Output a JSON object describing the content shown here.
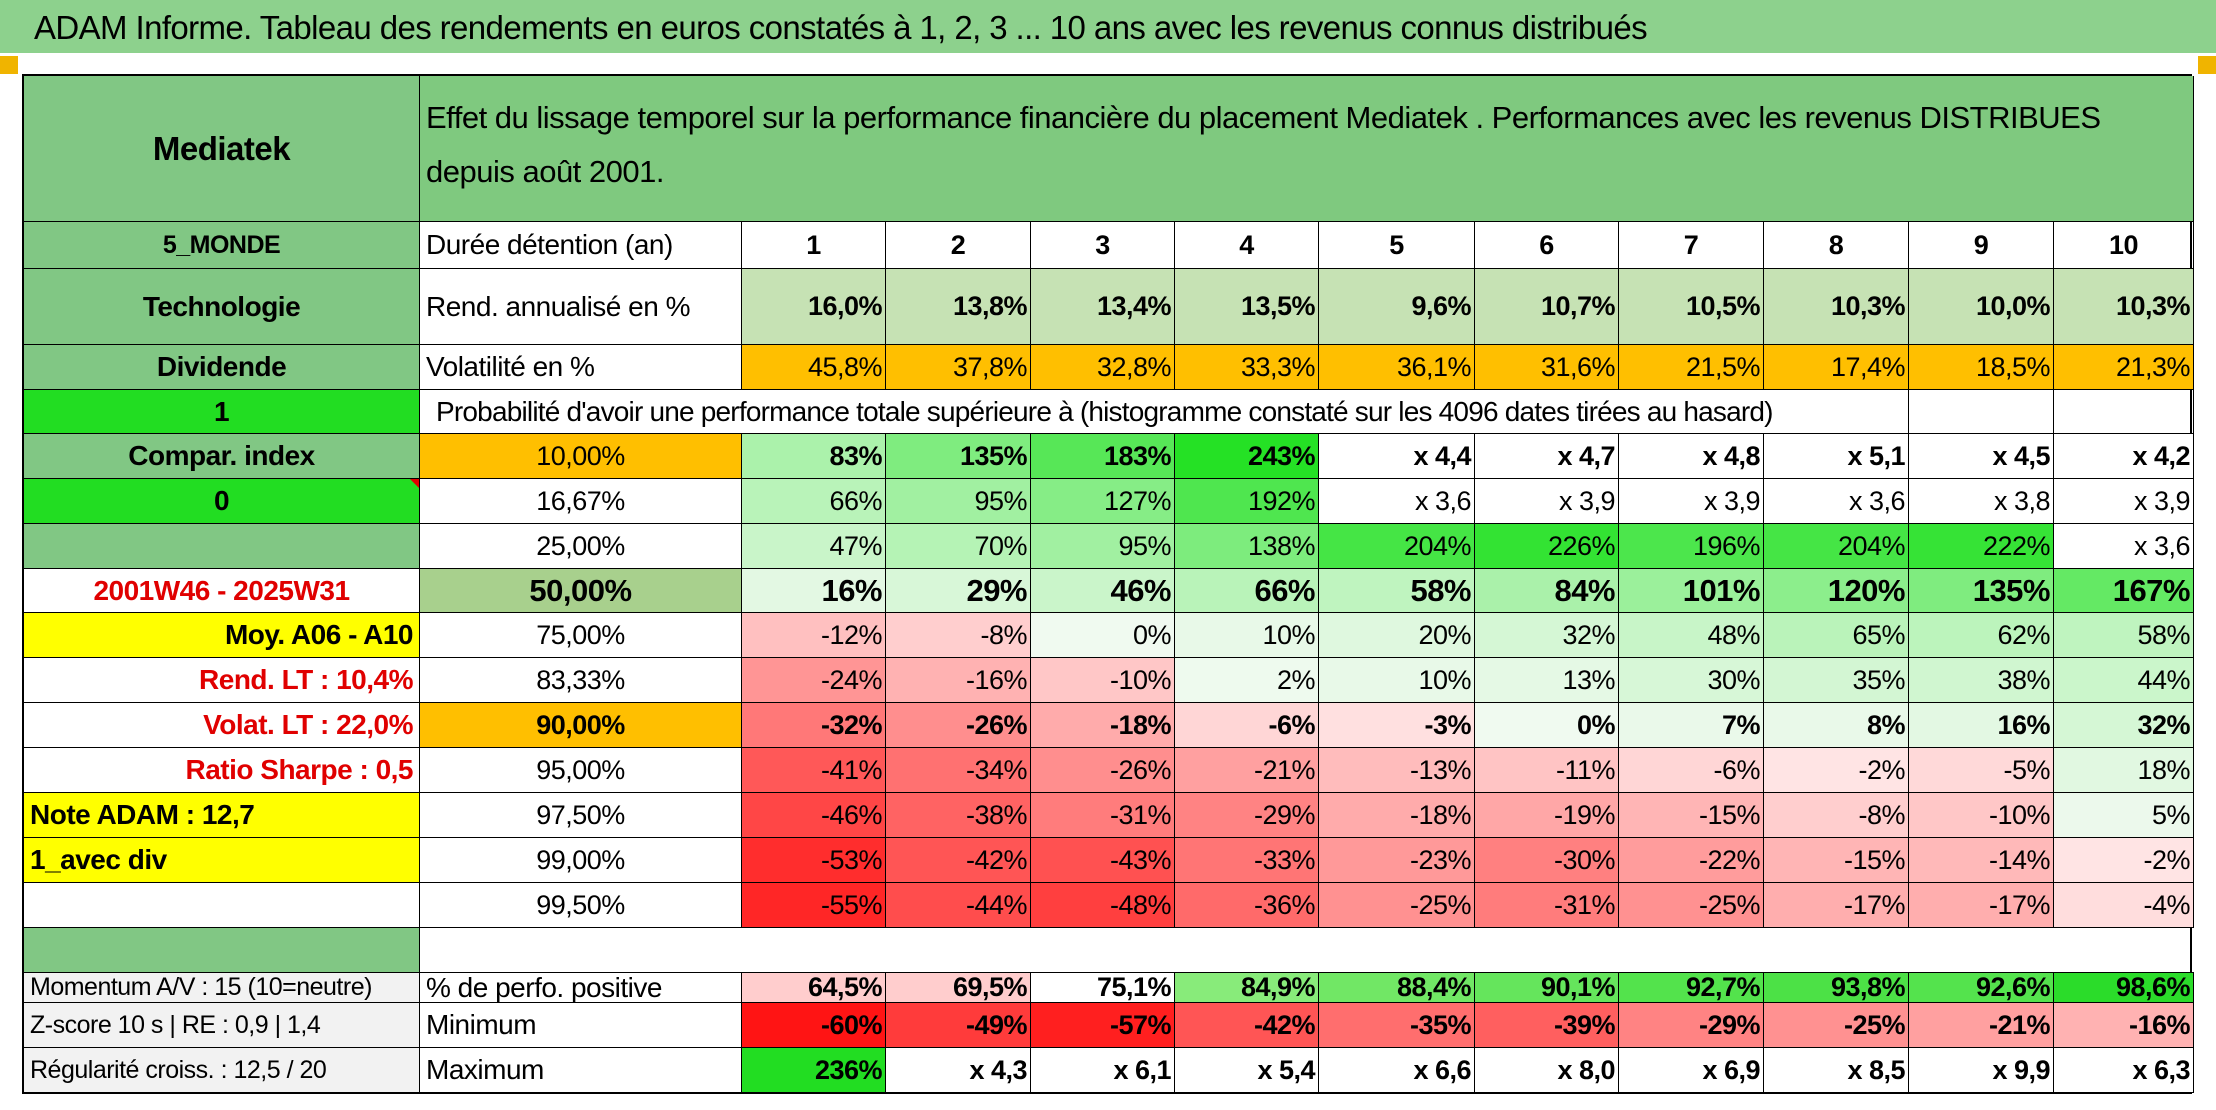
{
  "title": "ADAM Informe. Tableau des rendements en euros constatés à 1, 2, 3 ... 10 ans avec les revenus connus distribués",
  "left": {
    "name": "Mediatek",
    "zone": "5_MONDE",
    "sector": "Technologie",
    "dividend": "Dividende",
    "value_one": "1",
    "compar_index": "Compar. index",
    "value_zero": "0",
    "period": "2001W46 - 2025W31",
    "moy": "Moy. A06 - A10",
    "rend_lt": "Rend. LT :    10,4%",
    "volat_lt": "Volat. LT :    22,0%",
    "sharpe": "Ratio Sharpe :    0,5",
    "note": "Note ADAM : 12,7",
    "avec_div": "1_avec div",
    "momentum": "Momentum A/V : 15 (10=neutre)",
    "zscore": "Z-score 10 s | RE : 0,9 | 1,4",
    "regularite": "Régularité croiss. : 12,5 / 20"
  },
  "heading": "Effet du lissage temporel sur la performance financière du placement Mediatek . Performances avec les revenus DISTRIBUES depuis août 2001.",
  "duree_label": "Durée détention (an)",
  "years": [
    "1",
    "2",
    "3",
    "4",
    "5",
    "6",
    "7",
    "8",
    "9",
    "10"
  ],
  "rend_label": "Rend. annualisé en %",
  "rend": [
    "16,0%",
    "13,8%",
    "13,4%",
    "13,5%",
    "9,6%",
    "10,7%",
    "10,5%",
    "10,3%",
    "10,0%",
    "10,3%"
  ],
  "vol_label": "Volatilité en %",
  "vol": [
    "45,8%",
    "37,8%",
    "32,8%",
    "33,3%",
    "36,1%",
    "31,6%",
    "21,5%",
    "17,4%",
    "18,5%",
    "21,3%"
  ],
  "prob_heading": "Probabilité d'avoir une performance totale supérieure à (histogramme constaté sur les 4096 dates tirées au hasard)",
  "prob_rows": [
    {
      "p": "10,00%",
      "v": [
        "83%",
        "135%",
        "183%",
        "243%",
        "x 4,4",
        "x 4,7",
        "x 4,8",
        "x 5,1",
        "x 4,5",
        "x 4,2"
      ]
    },
    {
      "p": "16,67%",
      "v": [
        "66%",
        "95%",
        "127%",
        "192%",
        "x 3,6",
        "x 3,9",
        "x 3,9",
        "x 3,6",
        "x 3,8",
        "x 3,9"
      ]
    },
    {
      "p": "25,00%",
      "v": [
        "47%",
        "70%",
        "95%",
        "138%",
        "204%",
        "226%",
        "196%",
        "204%",
        "222%",
        "x 3,6"
      ]
    },
    {
      "p": "50,00%",
      "v": [
        "16%",
        "29%",
        "46%",
        "66%",
        "58%",
        "84%",
        "101%",
        "120%",
        "135%",
        "167%"
      ]
    },
    {
      "p": "75,00%",
      "v": [
        "-12%",
        "-8%",
        "0%",
        "10%",
        "20%",
        "32%",
        "48%",
        "65%",
        "62%",
        "58%"
      ]
    },
    {
      "p": "83,33%",
      "v": [
        "-24%",
        "-16%",
        "-10%",
        "2%",
        "10%",
        "13%",
        "30%",
        "35%",
        "38%",
        "44%"
      ]
    },
    {
      "p": "90,00%",
      "v": [
        "-32%",
        "-26%",
        "-18%",
        "-6%",
        "-3%",
        "0%",
        "7%",
        "8%",
        "16%",
        "32%"
      ]
    },
    {
      "p": "95,00%",
      "v": [
        "-41%",
        "-34%",
        "-26%",
        "-21%",
        "-13%",
        "-11%",
        "-6%",
        "-2%",
        "-5%",
        "18%"
      ]
    },
    {
      "p": "97,50%",
      "v": [
        "-46%",
        "-38%",
        "-31%",
        "-29%",
        "-18%",
        "-19%",
        "-15%",
        "-8%",
        "-10%",
        "5%"
      ]
    },
    {
      "p": "99,00%",
      "v": [
        "-53%",
        "-42%",
        "-43%",
        "-33%",
        "-23%",
        "-30%",
        "-22%",
        "-15%",
        "-14%",
        "-2%"
      ]
    },
    {
      "p": "99,50%",
      "v": [
        "-55%",
        "-44%",
        "-48%",
        "-36%",
        "-25%",
        "-31%",
        "-25%",
        "-17%",
        "-17%",
        "-4%"
      ]
    }
  ],
  "pos_label": "% de perfo. positive",
  "pos": [
    "64,5%",
    "69,5%",
    "75,1%",
    "84,9%",
    "88,4%",
    "90,1%",
    "92,7%",
    "93,8%",
    "92,6%",
    "98,6%"
  ],
  "min_label": "Minimum",
  "min": [
    "-60%",
    "-49%",
    "-57%",
    "-42%",
    "-35%",
    "-39%",
    "-29%",
    "-25%",
    "-21%",
    "-16%"
  ],
  "max_label": "Maximum",
  "max": [
    "236%",
    "x 4,3",
    "x 6,1",
    "x 5,4",
    "x 6,6",
    "x 8,0",
    "x 6,9",
    "x 8,5",
    "x 9,9",
    "x 6,3"
  ],
  "colors": {
    "header_green": "#7fc97f",
    "bright_green": "#22dd22",
    "orange": "#ffbf00",
    "yellow": "#ffff00",
    "red_text": "#e00000"
  }
}
